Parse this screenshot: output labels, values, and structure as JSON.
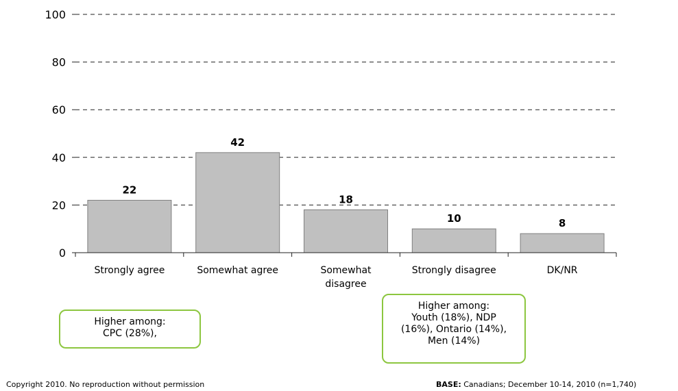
{
  "chart_data": {
    "type": "bar",
    "categories": [
      "Strongly agree",
      "Somewhat agree",
      "Somewhat disagree",
      "Strongly disagree",
      "DK/NR"
    ],
    "category_label_lines": [
      [
        "Strongly agree"
      ],
      [
        "Somewhat agree"
      ],
      [
        "Somewhat",
        "disagree"
      ],
      [
        "Strongly disagree"
      ],
      [
        "DK/NR"
      ]
    ],
    "values": [
      22,
      42,
      18,
      10,
      8
    ],
    "ylim": [
      0,
      100
    ],
    "yticks": [
      0,
      20,
      40,
      60,
      80,
      100
    ],
    "grid": "dashed horizontal",
    "bar_color": "#c0c0c0",
    "bar_border_color": "#7f7f7f",
    "title": "",
    "xlabel": "",
    "ylabel": ""
  },
  "callouts": {
    "left": {
      "lines": [
        "Higher among:",
        "CPC (28%),"
      ]
    },
    "right": {
      "lines": [
        "Higher among:",
        "Youth (18%), NDP",
        "(16%), Ontario (14%),",
        "Men (14%)"
      ]
    }
  },
  "footer": {
    "copyright": "Copyright 2010. No reproduction without permission",
    "base_label": "BASE:",
    "base_text": " Canadians; December 10-14, 2010 (n=1,740)"
  },
  "colors": {
    "callout_border": "#8cc63f"
  }
}
